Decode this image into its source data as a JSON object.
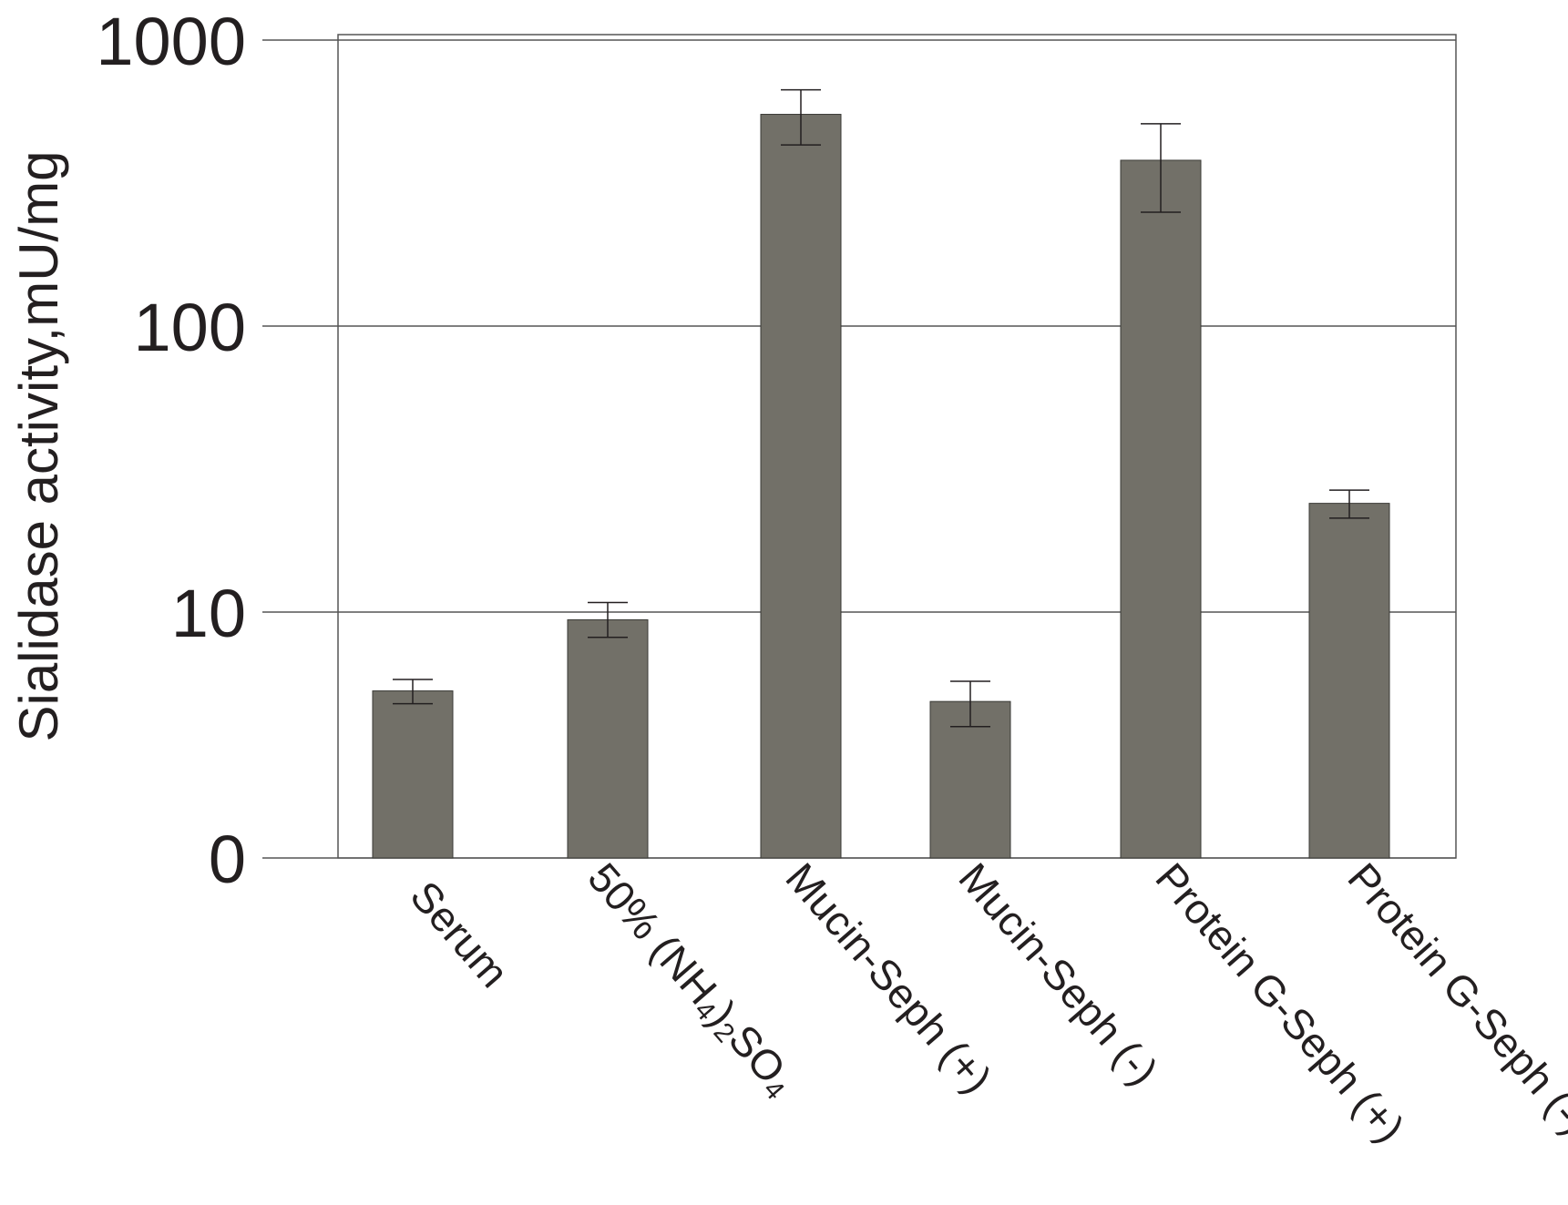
{
  "chart_data": {
    "type": "bar",
    "ylabel": "Sialidase activity,mU/mg",
    "yscale": "log",
    "yticks": [
      0,
      10,
      100,
      1000
    ],
    "ytick_labels": [
      "0",
      "10",
      "100",
      "1000"
    ],
    "ylim": [
      0,
      1000
    ],
    "grid": true,
    "categories": [
      "Serum",
      "50% (NH4)2SO4",
      "Mucin-Seph (+)",
      "Mucin-Seph (-)",
      "Protein G-Seph (+)",
      "Protein G-Seph (-)"
    ],
    "values": [
      4.1,
      9.2,
      550,
      3.6,
      380,
      24
    ],
    "errors": [
      0.6,
      1.6,
      120,
      1.0,
      130,
      2.7
    ],
    "colors": {
      "bar": "#727068",
      "line": "#231f20",
      "frame": "#555555"
    }
  }
}
